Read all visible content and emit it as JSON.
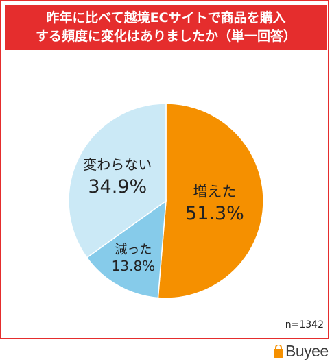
{
  "title": {
    "line1": "昨年に比べて越境ECサイトで商品を購入",
    "line2": "する頻度に変化はありましたか（単一回答）"
  },
  "sample_size": "n=1342",
  "brand": {
    "name": "Buyee"
  },
  "colors": {
    "accent": "#e52d2d",
    "increased": "#f59000",
    "decreased": "#86cbea",
    "unchanged": "#cbe9f6"
  },
  "chart_data": {
    "type": "pie",
    "title": "昨年に比べて越境ECサイトで商品を購入する頻度に変化はありましたか（単一回答）",
    "slices": [
      {
        "label": "増えた",
        "value": 51.3,
        "display": "51.3%",
        "color": "#f59000"
      },
      {
        "label": "減った",
        "value": 13.8,
        "display": "13.8%",
        "color": "#86cbea"
      },
      {
        "label": "変わらない",
        "value": 34.9,
        "display": "34.9%",
        "color": "#cbe9f6"
      }
    ],
    "start": "12 o'clock",
    "direction": "clockwise"
  }
}
